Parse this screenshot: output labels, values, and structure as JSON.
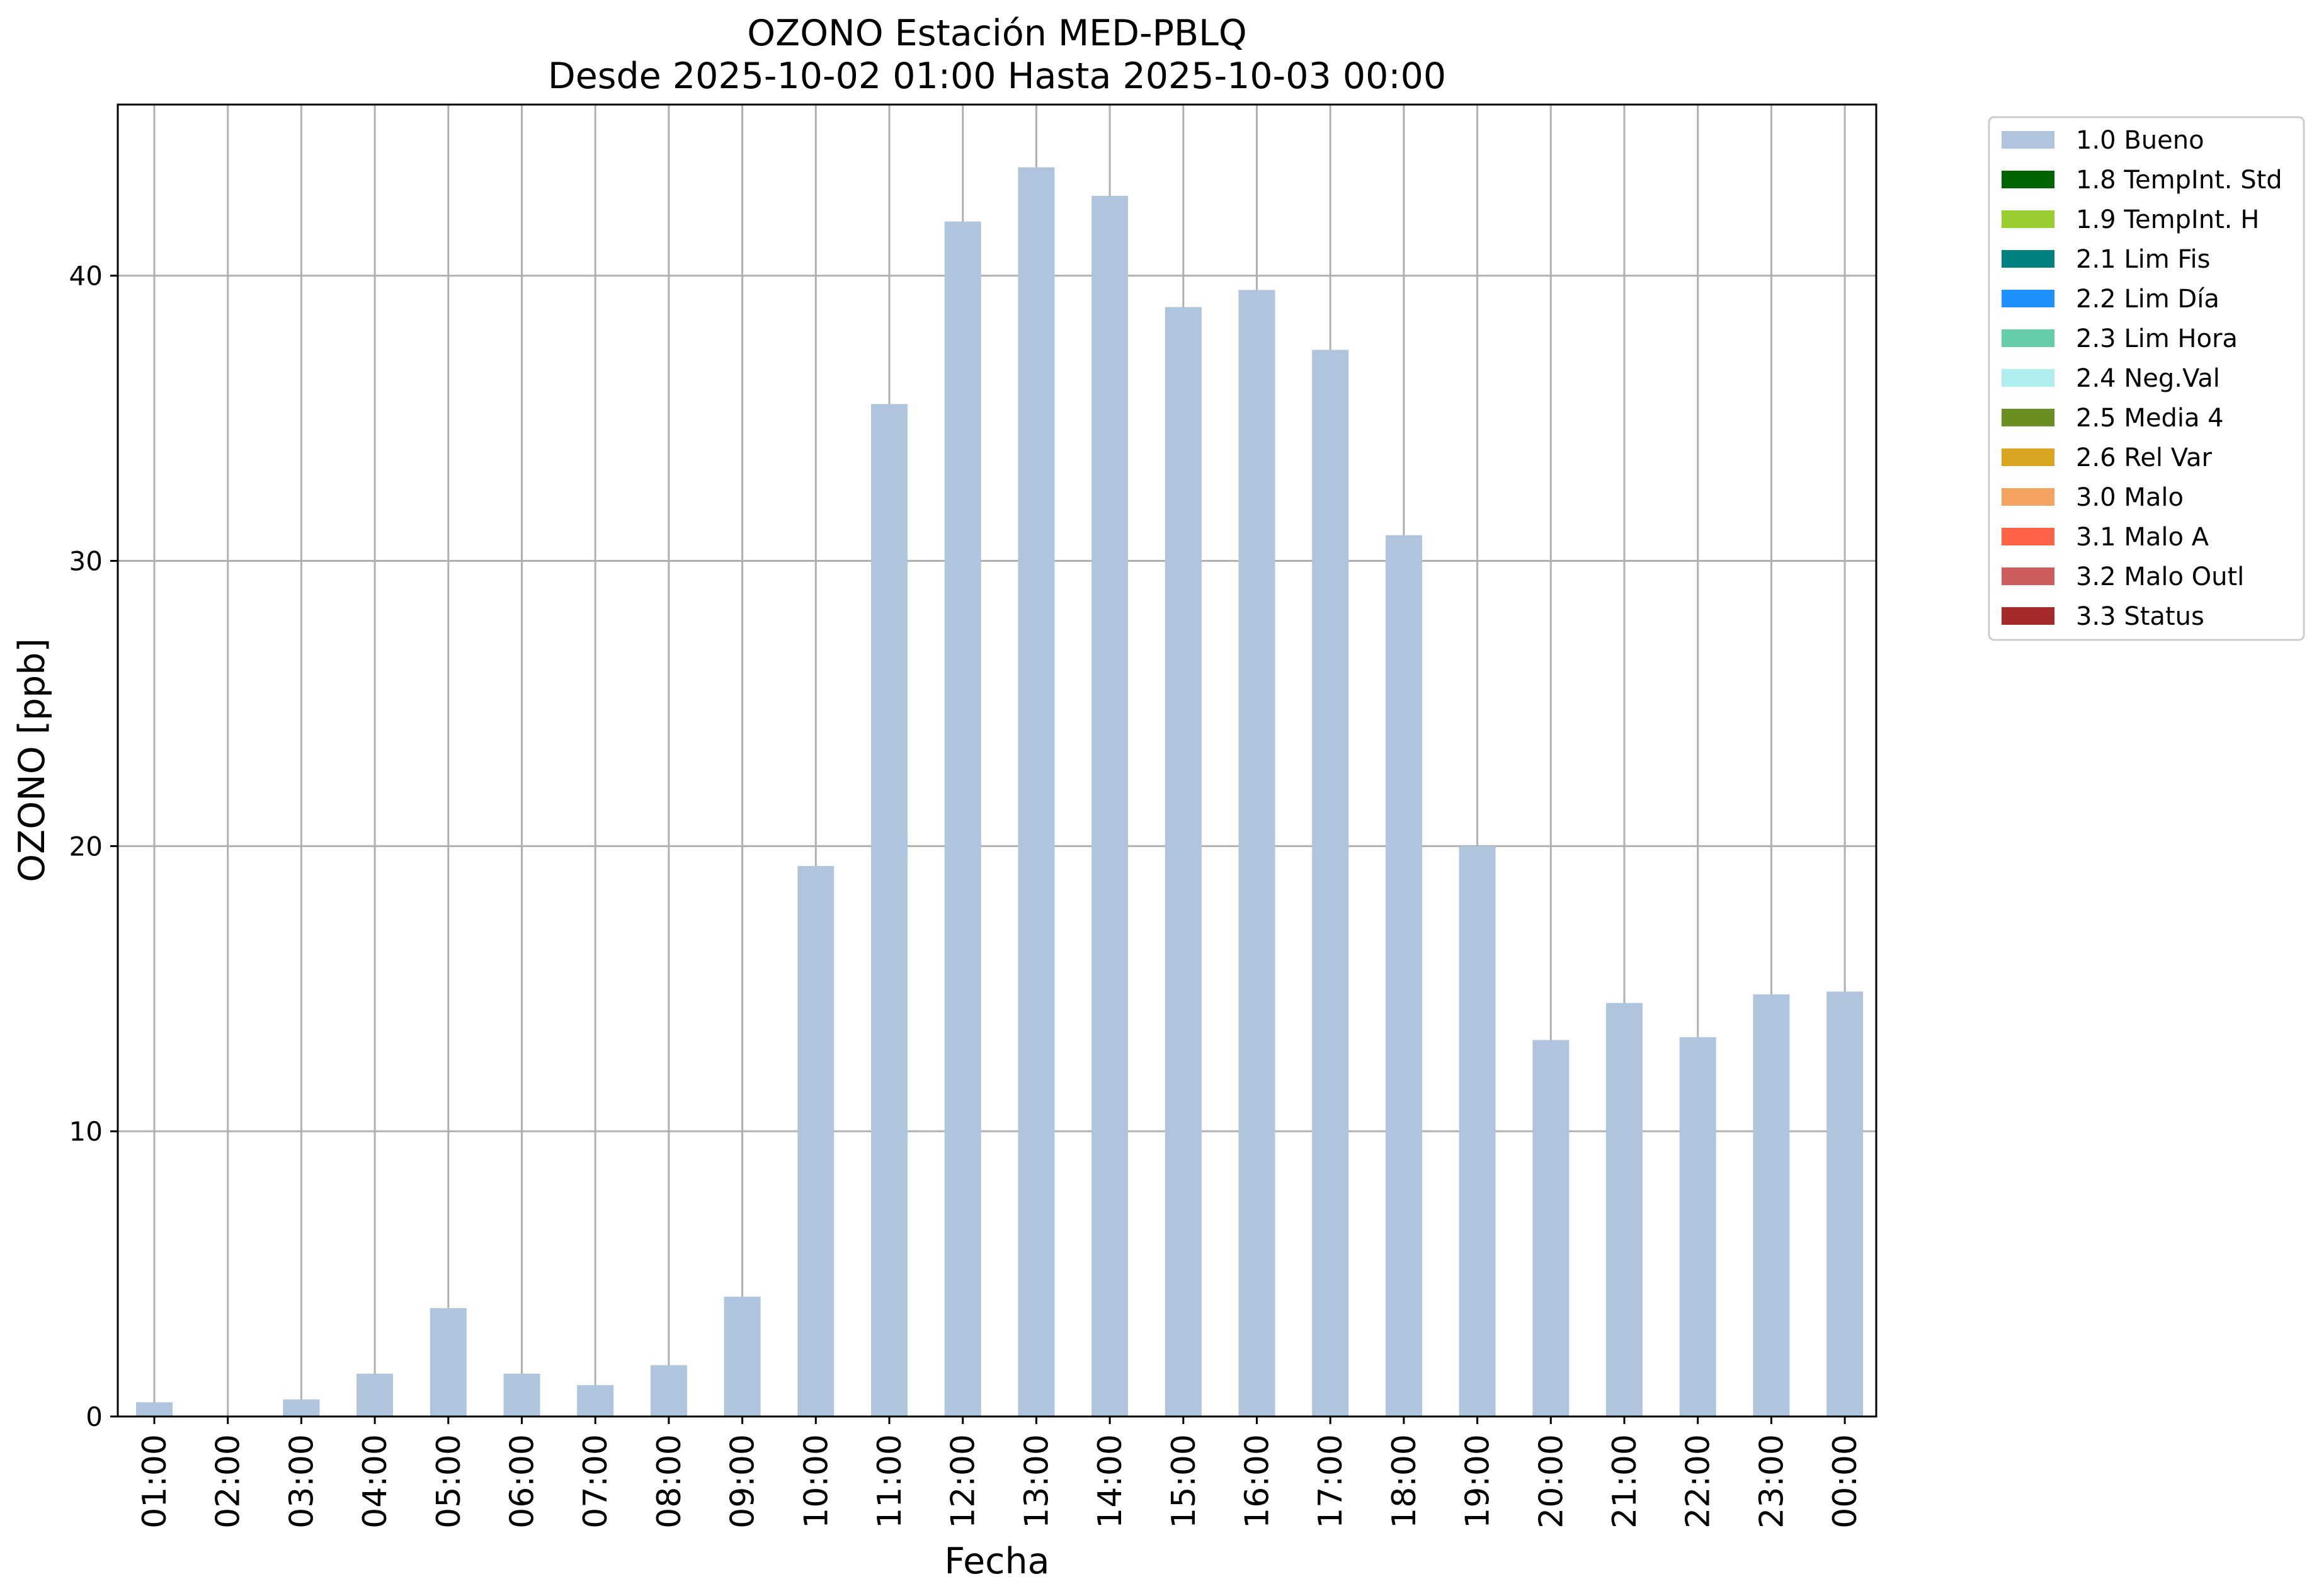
{
  "chart_data": {
    "type": "bar",
    "title": "OZONO Estación MED-PBLQ",
    "subtitle": "Desde 2025-10-02 01:00 Hasta 2025-10-03 00:00",
    "xlabel": "Fecha",
    "ylabel": "OZONO [ppb]",
    "ylim": [
      0,
      46
    ],
    "yticks": [
      0,
      10,
      20,
      30,
      40
    ],
    "grid": true,
    "legend_position": "outside-top-right",
    "categories": [
      "01:00",
      "02:00",
      "03:00",
      "04:00",
      "05:00",
      "06:00",
      "07:00",
      "08:00",
      "09:00",
      "10:00",
      "11:00",
      "12:00",
      "13:00",
      "14:00",
      "15:00",
      "16:00",
      "17:00",
      "18:00",
      "19:00",
      "20:00",
      "21:00",
      "22:00",
      "23:00",
      "00:00"
    ],
    "series": [
      {
        "name": "1.0 Bueno",
        "color": "#b0c4de",
        "values": [
          0.5,
          0,
          0.6,
          1.5,
          3.8,
          1.5,
          1.1,
          1.8,
          4.2,
          19.3,
          35.5,
          41.9,
          43.8,
          42.8,
          38.9,
          39.5,
          37.4,
          30.9,
          20.0,
          13.2,
          14.5,
          13.3,
          14.8,
          14.9
        ]
      }
    ],
    "legend": [
      {
        "label": "1.0 Bueno",
        "color": "#b0c4de"
      },
      {
        "label": "1.8 TempInt. Std",
        "color": "#006400"
      },
      {
        "label": "1.9 TempInt. H",
        "color": "#9acd32"
      },
      {
        "label": "2.1 Lim Fis",
        "color": "#008080"
      },
      {
        "label": "2.2 Lim Día",
        "color": "#1e90ff"
      },
      {
        "label": "2.3 Lim Hora",
        "color": "#66cdaa"
      },
      {
        "label": "2.4 Neg.Val",
        "color": "#afeeee"
      },
      {
        "label": "2.5 Media 4",
        "color": "#6b8e23"
      },
      {
        "label": "2.6 Rel Var",
        "color": "#daa520"
      },
      {
        "label": "3.0 Malo",
        "color": "#f4a460"
      },
      {
        "label": "3.1 Malo A",
        "color": "#ff6347"
      },
      {
        "label": "3.2 Malo Outl",
        "color": "#cd5c5c"
      },
      {
        "label": "3.3 Status",
        "color": "#a52a2a"
      }
    ]
  }
}
